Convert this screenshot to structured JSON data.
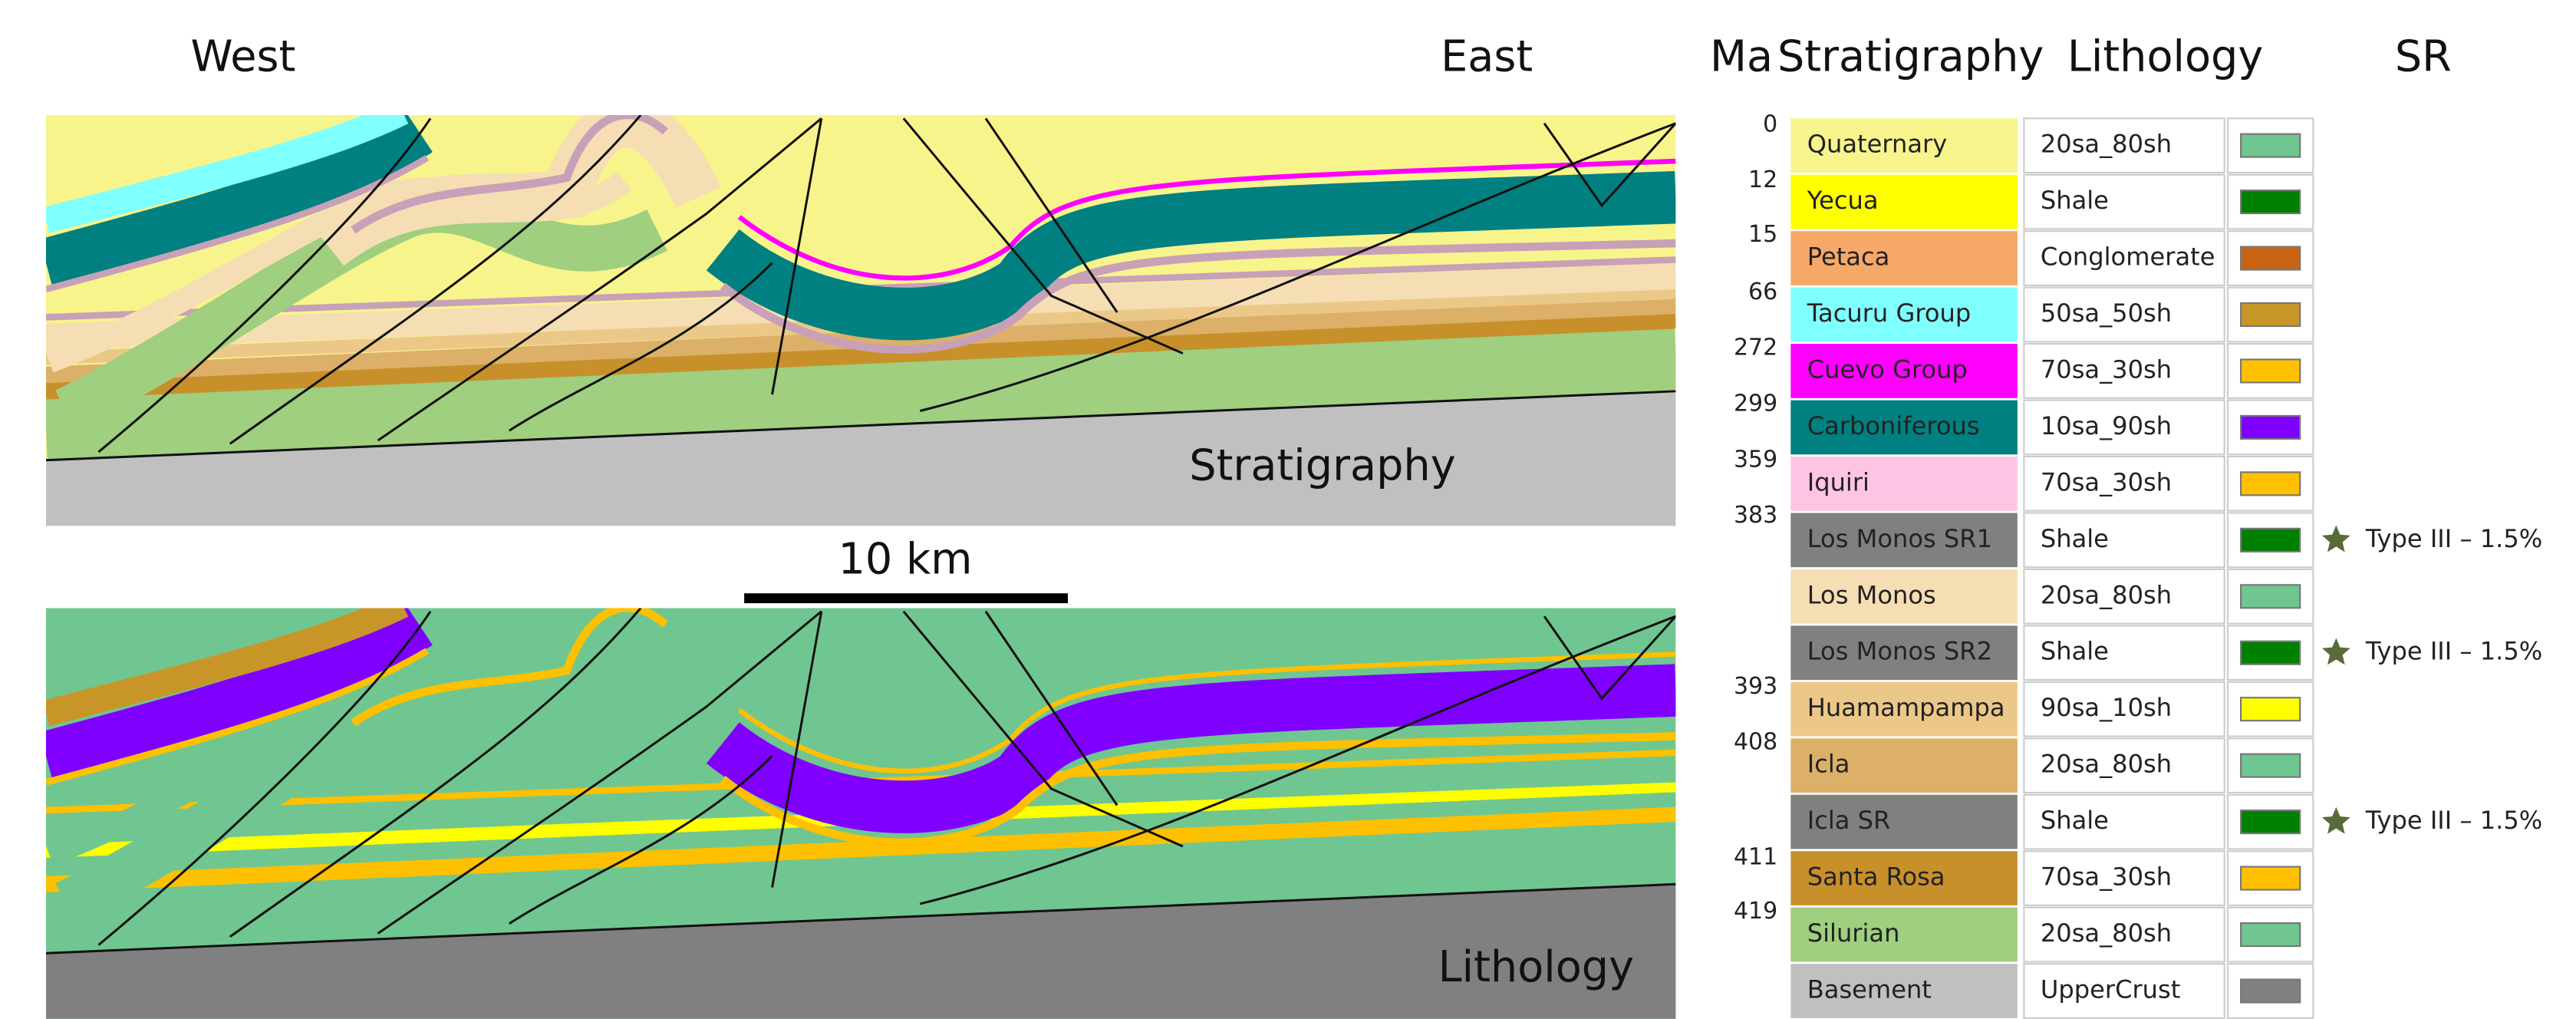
{
  "header": {
    "west": "West",
    "east": "East",
    "ma": "Ma",
    "stratigraphy": "Stratigraphy",
    "lithology": "Lithology",
    "sr": "SR"
  },
  "panels": {
    "top_label": "Stratigraphy",
    "bottom_label": "Lithology",
    "scale_bar": "10 km"
  },
  "ages": [
    "0",
    "12",
    "15",
    "66",
    "272",
    "299",
    "359",
    "383",
    "393",
    "408",
    "411",
    "419"
  ],
  "table": {
    "rows": [
      {
        "name": "Quaternary",
        "color": "#f7f48c",
        "lithology": "20sa_80sh",
        "swatch": "#70c690"
      },
      {
        "name": "Yecua",
        "color": "#ffff00",
        "lithology": "Shale",
        "swatch": "#008000"
      },
      {
        "name": "Petaca",
        "color": "#f6a868",
        "lithology": "Conglomerate",
        "swatch": "#c86414"
      },
      {
        "name": "Tacuru Group",
        "color": "#80ffff",
        "lithology": "50sa_50sh",
        "swatch": "#c89628"
      },
      {
        "name": "Cuevo Group",
        "color": "#ff00ff",
        "lithology": "70sa_30sh",
        "swatch": "#ffc000"
      },
      {
        "name": "Carboniferous",
        "color": "#008080",
        "lithology": "10sa_90sh",
        "swatch": "#8000ff"
      },
      {
        "name": "Iquiri",
        "color": "#ffc4e4",
        "lithology": "70sa_30sh",
        "swatch": "#ffc000"
      },
      {
        "name": "Los Monos SR1",
        "color": "#808080",
        "lithology": "Shale",
        "swatch": "#008000",
        "sr": "Type III – 1.5%"
      },
      {
        "name": "Los Monos",
        "color": "#f5deb3",
        "lithology": "20sa_80sh",
        "swatch": "#70c690"
      },
      {
        "name": "Los Monos SR2",
        "color": "#808080",
        "lithology": "Shale",
        "swatch": "#008000",
        "sr": "Type III – 1.5%"
      },
      {
        "name": "Huamampampa",
        "color": "#ecc888",
        "lithology": "90sa_10sh",
        "swatch": "#ffff00"
      },
      {
        "name": "Icla",
        "color": "#dcb068",
        "lithology": "20sa_80sh",
        "swatch": "#70c690"
      },
      {
        "name": "Icla SR",
        "color": "#808080",
        "lithology": "Shale",
        "swatch": "#008000",
        "sr": "Type III – 1.5%"
      },
      {
        "name": "Santa Rosa",
        "color": "#c8902a",
        "lithology": "70sa_30sh",
        "swatch": "#ffc000"
      },
      {
        "name": "Silurian",
        "color": "#9fcf7f",
        "lithology": "20sa_80sh",
        "swatch": "#70c690"
      },
      {
        "name": "Basement",
        "color": "#c0c0c0",
        "lithology": "UpperCrust",
        "swatch": "#808080"
      }
    ]
  }
}
